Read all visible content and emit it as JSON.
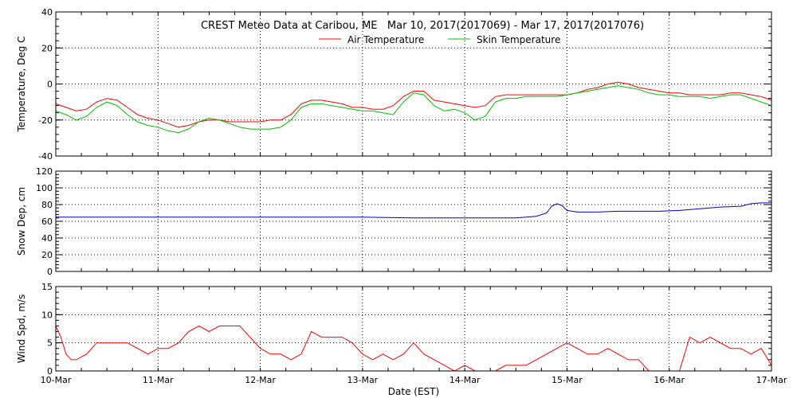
{
  "title": "CREST Meteo Data at Caribou, ME   Mar 10, 2017(2017069) - Mar 17, 2017(2017076)",
  "xlabel": "Date (EST)",
  "x_tick_labels": [
    "10-Mar",
    "11-Mar",
    "12-Mar",
    "13-Mar",
    "14-Mar",
    "15-Mar",
    "16-Mar",
    "17-Mar"
  ],
  "colors": {
    "air": "#ff0000",
    "skin": "#00c000",
    "snow": "#0000c0",
    "wind": "#ff0000"
  },
  "chart_data": [
    {
      "type": "line",
      "ylabel": "Temperature, Deg C",
      "ylim": [
        -40,
        40
      ],
      "y_ticks": [
        -40,
        -20,
        0,
        20,
        40
      ],
      "xlim": [
        0,
        7
      ],
      "grid": true,
      "legend": "top-center",
      "series": [
        {
          "name": "Air Temperature",
          "color": "#ff0000",
          "x": [
            0,
            0.1,
            0.2,
            0.3,
            0.4,
            0.5,
            0.6,
            0.7,
            0.8,
            0.9,
            1.0,
            1.1,
            1.2,
            1.3,
            1.4,
            1.5,
            1.6,
            1.7,
            1.8,
            1.9,
            2.0,
            2.1,
            2.2,
            2.3,
            2.4,
            2.5,
            2.6,
            2.7,
            2.8,
            2.9,
            3.0,
            3.1,
            3.2,
            3.3,
            3.4,
            3.5,
            3.6,
            3.7,
            3.8,
            3.9,
            4.0,
            4.1,
            4.2,
            4.3,
            4.4,
            4.5,
            4.6,
            4.7,
            4.8,
            4.9,
            5.0,
            5.1,
            5.2,
            5.3,
            5.4,
            5.5,
            5.6,
            5.7,
            5.8,
            5.9,
            6.0,
            6.1,
            6.2,
            6.3,
            6.4,
            6.5,
            6.6,
            6.7,
            6.8,
            6.9,
            7.0
          ],
          "values": [
            -11,
            -13,
            -15,
            -14,
            -10,
            -8,
            -9,
            -13,
            -17,
            -19,
            -20,
            -22,
            -24,
            -23,
            -21,
            -20,
            -20,
            -21,
            -21,
            -21,
            -21,
            -20,
            -20,
            -17,
            -11,
            -9,
            -9,
            -10,
            -11,
            -13,
            -13,
            -14,
            -14,
            -12,
            -7,
            -4,
            -4,
            -9,
            -10,
            -11,
            -12,
            -13,
            -12,
            -7,
            -6,
            -6,
            -6,
            -6,
            -6,
            -6,
            -6,
            -5,
            -3,
            -2,
            0,
            1,
            0,
            -2,
            -3,
            -4,
            -5,
            -5,
            -6,
            -6,
            -6,
            -6,
            -5,
            -5,
            -6,
            -7,
            -9
          ]
        },
        {
          "name": "Skin Temperature",
          "color": "#00c000",
          "x": [
            0,
            0.1,
            0.2,
            0.3,
            0.4,
            0.5,
            0.6,
            0.7,
            0.8,
            0.9,
            1.0,
            1.1,
            1.2,
            1.3,
            1.4,
            1.5,
            1.6,
            1.7,
            1.8,
            1.9,
            2.0,
            2.1,
            2.2,
            2.3,
            2.4,
            2.5,
            2.6,
            2.7,
            2.8,
            2.9,
            3.0,
            3.1,
            3.2,
            3.3,
            3.4,
            3.5,
            3.6,
            3.7,
            3.8,
            3.9,
            4.0,
            4.1,
            4.2,
            4.3,
            4.4,
            4.5,
            4.6,
            4.7,
            4.8,
            4.9,
            5.0,
            5.1,
            5.2,
            5.3,
            5.4,
            5.5,
            5.6,
            5.7,
            5.8,
            5.9,
            6.0,
            6.1,
            6.2,
            6.3,
            6.4,
            6.5,
            6.6,
            6.7,
            6.8,
            6.9,
            7.0
          ],
          "values": [
            -15,
            -17,
            -20,
            -18,
            -13,
            -10,
            -12,
            -17,
            -21,
            -23,
            -24,
            -26,
            -27,
            -25,
            -21,
            -19,
            -20,
            -22,
            -24,
            -25,
            -25,
            -25,
            -24,
            -20,
            -13,
            -11,
            -11,
            -12,
            -13,
            -14,
            -15,
            -15,
            -16,
            -17,
            -10,
            -5,
            -6,
            -12,
            -15,
            -14,
            -16,
            -20,
            -18,
            -10,
            -8,
            -8,
            -7,
            -7,
            -7,
            -7,
            -6,
            -5,
            -4,
            -3,
            -2,
            -1,
            -2,
            -3,
            -5,
            -6,
            -6,
            -7,
            -7,
            -7,
            -8,
            -7,
            -6,
            -6,
            -8,
            -10,
            -12
          ]
        }
      ]
    },
    {
      "type": "line",
      "ylabel": "Snow Dep, cm",
      "ylim": [
        0,
        120
      ],
      "y_ticks": [
        0,
        20,
        40,
        60,
        80,
        100,
        120
      ],
      "xlim": [
        0,
        7
      ],
      "grid": true,
      "series": [
        {
          "color": "#0000c0",
          "x": [
            0,
            0.5,
            1.0,
            1.5,
            2.0,
            2.5,
            3.0,
            3.5,
            4.0,
            4.5,
            4.7,
            4.8,
            4.85,
            4.9,
            4.95,
            5.0,
            5.1,
            5.3,
            5.5,
            5.7,
            5.9,
            6.1,
            6.3,
            6.5,
            6.7,
            6.8,
            6.9,
            7.0
          ],
          "values": [
            65,
            65,
            65,
            65,
            65,
            65,
            65,
            64,
            64,
            64,
            66,
            70,
            78,
            81,
            79,
            73,
            71,
            71,
            72,
            72,
            72,
            73,
            75,
            77,
            78,
            81,
            82,
            82
          ]
        }
      ]
    },
    {
      "type": "line",
      "ylabel": "Wind Spd, m/s",
      "ylim": [
        0,
        15
      ],
      "y_ticks": [
        0,
        5,
        10,
        15
      ],
      "xlim": [
        0,
        7
      ],
      "grid": true,
      "series": [
        {
          "color": "#ff0000",
          "x": [
            0,
            0.05,
            0.1,
            0.15,
            0.2,
            0.3,
            0.4,
            0.5,
            0.6,
            0.7,
            0.8,
            0.9,
            1.0,
            1.1,
            1.2,
            1.3,
            1.4,
            1.5,
            1.6,
            1.7,
            1.8,
            1.9,
            2.0,
            2.1,
            2.2,
            2.3,
            2.4,
            2.5,
            2.6,
            2.7,
            2.8,
            2.9,
            3.0,
            3.1,
            3.2,
            3.3,
            3.4,
            3.5,
            3.6,
            3.7,
            3.8,
            3.9,
            4.0,
            4.1,
            4.2,
            4.3,
            4.4,
            4.5,
            4.6,
            4.7,
            4.8,
            4.9,
            5.0,
            5.1,
            5.2,
            5.3,
            5.4,
            5.5,
            5.6,
            5.7,
            5.8,
            5.9,
            6.0,
            6.1,
            6.2,
            6.3,
            6.4,
            6.5,
            6.6,
            6.7,
            6.8,
            6.9,
            7.0
          ],
          "values": [
            8,
            6,
            3,
            2,
            2,
            3,
            5,
            5,
            5,
            5,
            4,
            3,
            4,
            4,
            5,
            7,
            8,
            7,
            8,
            8,
            8,
            6,
            4,
            3,
            3,
            2,
            3,
            7,
            6,
            6,
            6,
            5,
            3,
            2,
            3,
            2,
            3,
            5,
            3,
            2,
            1,
            0,
            1,
            0,
            0,
            0,
            1,
            1,
            1,
            2,
            3,
            4,
            5,
            4,
            3,
            3,
            4,
            3,
            2,
            2,
            0,
            0,
            0,
            0,
            6,
            5,
            6,
            5,
            4,
            4,
            3,
            4,
            1
          ]
        }
      ]
    }
  ]
}
